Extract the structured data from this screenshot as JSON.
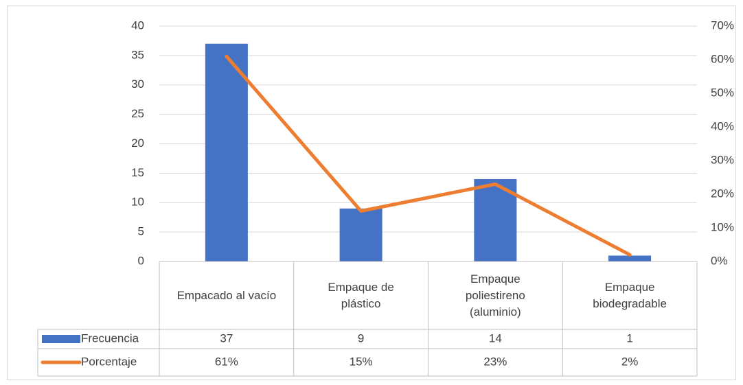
{
  "chart_data": {
    "type": "bar_line_table",
    "categories": [
      "Empacado al vacío",
      "Empaque de plástico",
      "Empaque poliestireno (aluminio)",
      "Empaque biodegradable"
    ],
    "series": [
      {
        "name": "Frecuencia",
        "type": "bar",
        "axis": "y",
        "color": "#4472c4",
        "values": [
          37,
          9,
          14,
          1
        ]
      },
      {
        "name": "Porcentaje",
        "type": "line",
        "axis": "y2",
        "color": "#ed7d31",
        "values": [
          61,
          15,
          23,
          2
        ],
        "value_labels": [
          "61%",
          "15%",
          "23%",
          "2%"
        ]
      }
    ],
    "ylim": [
      0,
      40
    ],
    "yticks": [
      0,
      5,
      10,
      15,
      20,
      25,
      30,
      35,
      40
    ],
    "y2lim": [
      0,
      70
    ],
    "y2ticks": [
      {
        "value": 0,
        "label": "0%"
      },
      {
        "value": 10,
        "label": "10%"
      },
      {
        "value": 20,
        "label": "20%"
      },
      {
        "value": 30,
        "label": "30%"
      },
      {
        "value": 40,
        "label": "40%"
      },
      {
        "value": 50,
        "label": "50%"
      },
      {
        "value": 60,
        "label": "60%"
      },
      {
        "value": 70,
        "label": "70%"
      }
    ],
    "grid": true
  }
}
